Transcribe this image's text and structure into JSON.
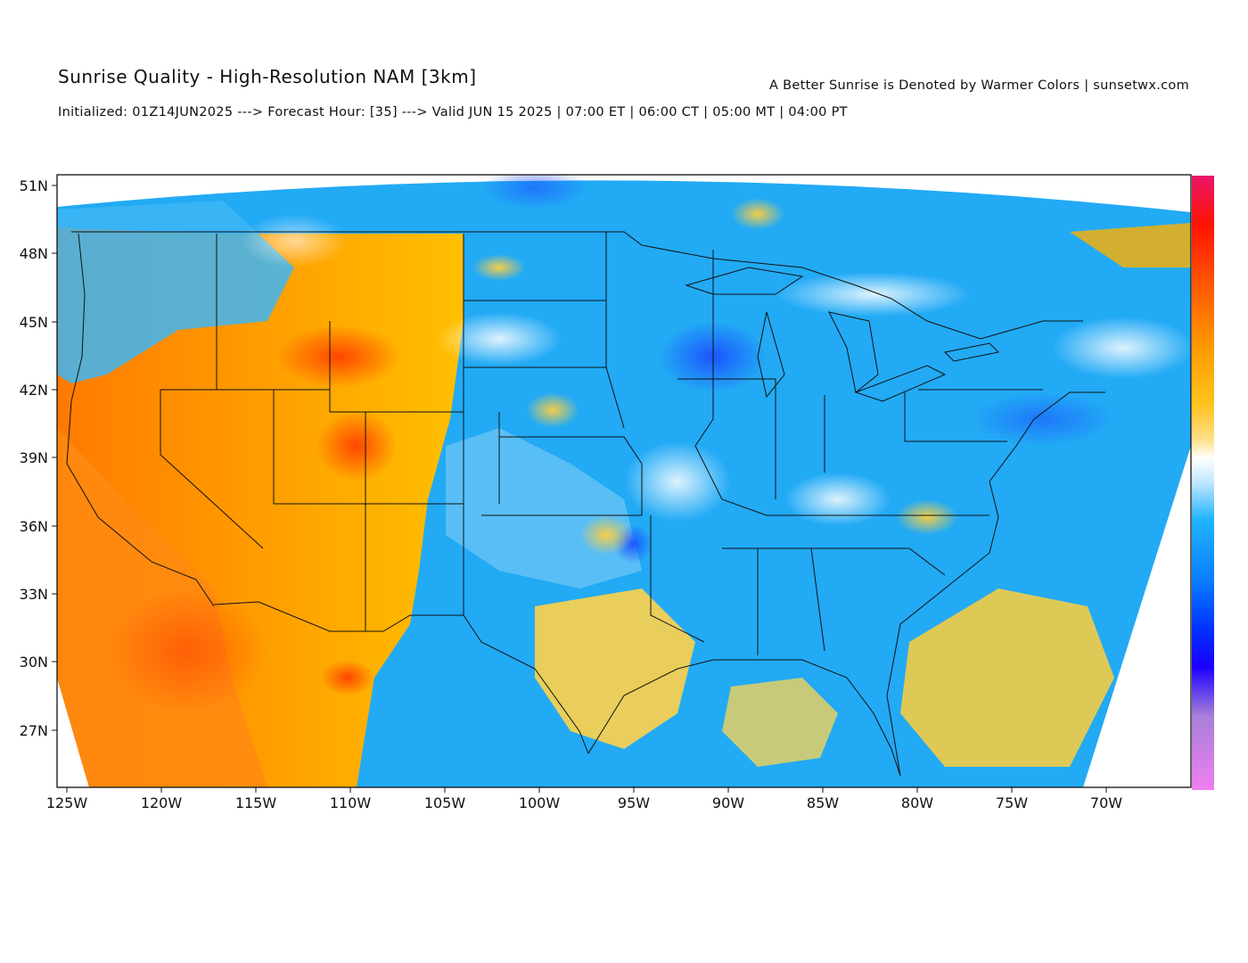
{
  "header": {
    "title": "Sunrise Quality - High-Resolution NAM [3km]",
    "subtitle": "Initialized: 01Z14JUN2025 ---> Forecast Hour: [35] ---> Valid JUN 15 2025 | 07:00 ET | 06:00 CT | 05:00 MT | 04:00 PT",
    "credit": "A Better Sunrise is Denoted by Warmer Colors | sunsetwx.com"
  },
  "map": {
    "lat_ticks": [
      "51N",
      "48N",
      "45N",
      "42N",
      "39N",
      "36N",
      "33N",
      "30N",
      "27N"
    ],
    "lon_ticks": [
      "125W",
      "120W",
      "115W",
      "110W",
      "105W",
      "100W",
      "95W",
      "90W",
      "85W",
      "80W",
      "75W",
      "70W"
    ],
    "colorbar_colors": [
      "#e8176b",
      "#ff1500",
      "#ff5a00",
      "#ff8c00",
      "#ffb000",
      "#ffd24a",
      "#ffffff",
      "#4fc3ff",
      "#0096ff",
      "#0040ff",
      "#2b00ff",
      "#7a4cd8",
      "#e07ae8"
    ]
  }
}
